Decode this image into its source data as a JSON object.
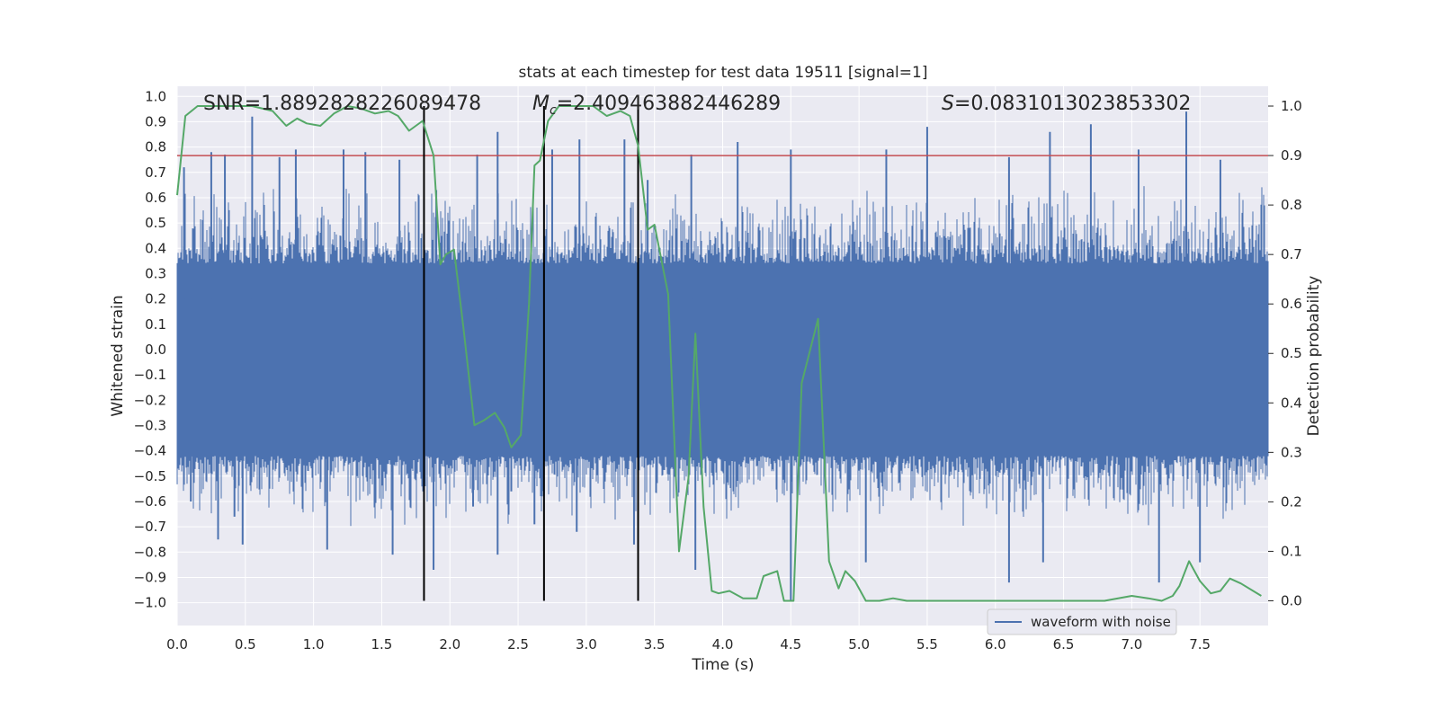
{
  "chart_data": {
    "type": "line",
    "title": "stats at each timestep for test data 19511 [signal=1]",
    "xlabel": "Time (s)",
    "ylabel_left": "Whitened strain",
    "ylabel_right": "Detection probability",
    "xlim": [
      0,
      8
    ],
    "ylim_left": [
      -1.09,
      1.04
    ],
    "ylim_right": [
      -0.05,
      1.04
    ],
    "x_ticks": [
      "0.0",
      "0.5",
      "1.0",
      "1.5",
      "2.0",
      "2.5",
      "3.0",
      "3.5",
      "4.0",
      "4.5",
      "5.0",
      "5.5",
      "6.0",
      "6.5",
      "7.0",
      "7.5"
    ],
    "y_left_ticks": [
      "1.0",
      "0.9",
      "0.8",
      "0.7",
      "0.6",
      "0.5",
      "0.4",
      "0.3",
      "0.2",
      "0.1",
      "0.0",
      "−0.1",
      "−0.2",
      "−0.3",
      "−0.4",
      "−0.5",
      "−0.6",
      "−0.7",
      "−0.8",
      "−0.9",
      "−1.0"
    ],
    "y_right_ticks": [
      "1.0",
      "0.9",
      "0.8",
      "0.7",
      "0.6",
      "0.5",
      "0.4",
      "0.3",
      "0.2",
      "0.1",
      "0.0"
    ],
    "threshold": 0.9,
    "vertical_lines": [
      1.81,
      2.69,
      3.38
    ],
    "annotations": {
      "snr": "SNR=1.8892828226089478",
      "mc_symbol": "M",
      "mc_sub": "c",
      "mc_value": "=2.409463882446289",
      "s_symbol": "S",
      "s_value": "=0.0831013023853302"
    },
    "legend": [
      "waveform with noise"
    ],
    "series": [
      {
        "name": "waveform with noise",
        "color": "#4c72b0",
        "kind": "noise",
        "band_top": 0.34,
        "band_bottom": -0.42,
        "peaks": [
          [
            0.05,
            0.72
          ],
          [
            0.25,
            0.78
          ],
          [
            0.35,
            0.77
          ],
          [
            0.55,
            0.92
          ],
          [
            0.75,
            0.76
          ],
          [
            0.87,
            0.79
          ],
          [
            1.22,
            0.79
          ],
          [
            1.38,
            0.78
          ],
          [
            1.63,
            0.75
          ],
          [
            1.9,
            0.63
          ],
          [
            2.2,
            0.77
          ],
          [
            2.35,
            0.86
          ],
          [
            2.75,
            0.79
          ],
          [
            2.95,
            0.83
          ],
          [
            3.28,
            0.83
          ],
          [
            3.45,
            0.67
          ],
          [
            3.77,
            0.77
          ],
          [
            4.11,
            0.82
          ],
          [
            4.5,
            0.79
          ],
          [
            5.2,
            0.79
          ],
          [
            5.5,
            0.88
          ],
          [
            6.1,
            0.76
          ],
          [
            6.4,
            0.86
          ],
          [
            6.7,
            0.89
          ],
          [
            7.05,
            0.79
          ],
          [
            7.4,
            0.94
          ],
          [
            7.65,
            0.75
          ]
        ],
        "troughs": [
          [
            0.1,
            -0.6
          ],
          [
            0.3,
            -0.75
          ],
          [
            0.42,
            -0.66
          ],
          [
            0.48,
            -0.77
          ],
          [
            1.1,
            -0.79
          ],
          [
            1.58,
            -0.81
          ],
          [
            1.88,
            -0.87
          ],
          [
            2.17,
            -0.62
          ],
          [
            2.35,
            -0.81
          ],
          [
            2.45,
            -0.56
          ],
          [
            2.62,
            -0.69
          ],
          [
            2.93,
            -0.72
          ],
          [
            3.35,
            -0.77
          ],
          [
            3.8,
            -0.87
          ],
          [
            4.5,
            -0.99
          ],
          [
            5.05,
            -0.84
          ],
          [
            6.1,
            -0.92
          ],
          [
            6.35,
            -0.84
          ],
          [
            7.2,
            -0.92
          ],
          [
            7.5,
            -0.84
          ]
        ]
      },
      {
        "name": "detection probability",
        "color": "#55a868",
        "axis": "right",
        "x": [
          0.0,
          0.06,
          0.15,
          0.35,
          0.55,
          0.7,
          0.8,
          0.88,
          0.95,
          1.05,
          1.15,
          1.25,
          1.35,
          1.45,
          1.55,
          1.62,
          1.7,
          1.8,
          1.88,
          1.93,
          1.97,
          2.03,
          2.1,
          2.18,
          2.25,
          2.33,
          2.4,
          2.45,
          2.52,
          2.58,
          2.62,
          2.66,
          2.72,
          2.8,
          2.9,
          3.05,
          3.15,
          3.25,
          3.32,
          3.38,
          3.45,
          3.5,
          3.6,
          3.68,
          3.75,
          3.8,
          3.86,
          3.92,
          3.97,
          4.05,
          4.15,
          4.25,
          4.3,
          4.4,
          4.45,
          4.52,
          4.58,
          4.7,
          4.78,
          4.85,
          4.9,
          4.97,
          5.05,
          5.15,
          5.25,
          5.35,
          5.45,
          5.55,
          5.7,
          5.9,
          6.05,
          6.2,
          6.4,
          6.6,
          6.8,
          7.0,
          7.12,
          7.22,
          7.3,
          7.35,
          7.42,
          7.5,
          7.58,
          7.65,
          7.72,
          7.8,
          7.95
        ],
        "y": [
          0.82,
          0.98,
          1.0,
          1.0,
          1.0,
          0.99,
          0.96,
          0.975,
          0.965,
          0.96,
          0.985,
          1.0,
          0.995,
          0.985,
          0.99,
          0.98,
          0.95,
          0.97,
          0.9,
          0.68,
          0.7,
          0.71,
          0.55,
          0.355,
          0.365,
          0.38,
          0.35,
          0.31,
          0.335,
          0.6,
          0.88,
          0.89,
          0.97,
          1.0,
          1.0,
          1.0,
          0.98,
          0.99,
          0.98,
          0.92,
          0.75,
          0.76,
          0.62,
          0.1,
          0.25,
          0.54,
          0.19,
          0.02,
          0.015,
          0.02,
          0.005,
          0.005,
          0.05,
          0.06,
          0.0,
          0.0,
          0.44,
          0.57,
          0.08,
          0.025,
          0.06,
          0.04,
          0.0,
          0.0,
          0.005,
          0.0,
          0.0,
          0.0,
          0.0,
          0.0,
          0.0,
          0.0,
          0.0,
          0.0,
          0.0,
          0.01,
          0.005,
          0.0,
          0.01,
          0.03,
          0.08,
          0.04,
          0.015,
          0.02,
          0.045,
          0.035,
          0.01
        ]
      },
      {
        "name": "threshold",
        "color": "#c44e52",
        "axis": "right"
      }
    ]
  }
}
